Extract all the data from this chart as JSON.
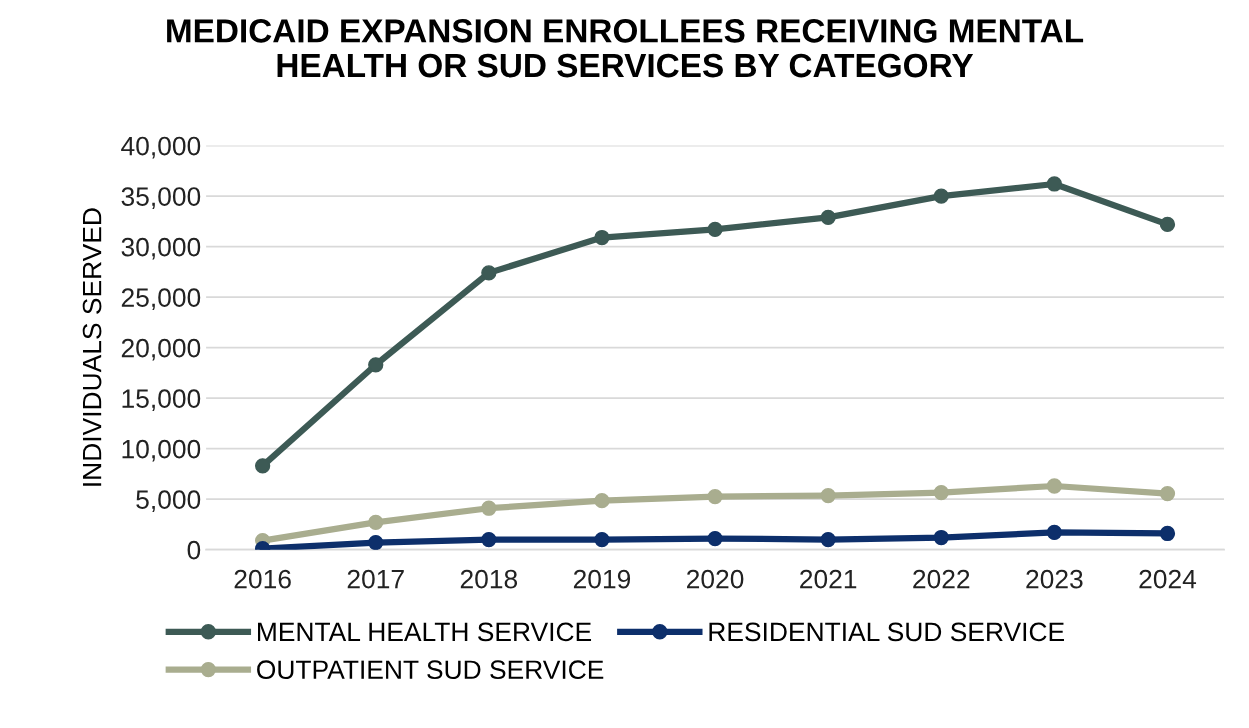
{
  "chart_data": {
    "type": "line",
    "title": "MEDICAID EXPANSION ENROLLEES RECEIVING MENTAL\nHEALTH OR SUD SERVICES BY CATEGORY",
    "ylabel": "INDIVIDUALS SERVED",
    "categories": [
      "2016",
      "2017",
      "2018",
      "2019",
      "2020",
      "2021",
      "2022",
      "2023",
      "2024"
    ],
    "series": [
      {
        "name": "MENTAL HEALTH SERVICE",
        "color": "#3d5a55",
        "values": [
          8300,
          18300,
          27400,
          30900,
          31700,
          32900,
          35000,
          36200,
          32200
        ]
      },
      {
        "name": "OUTPATIENT SUD SERVICE",
        "color": "#a9ad8f",
        "values": [
          900,
          2700,
          4100,
          4850,
          5250,
          5350,
          5650,
          6300,
          5550
        ]
      },
      {
        "name": "RESIDENTIAL SUD SERVICE",
        "color": "#0d2f6b",
        "values": [
          100,
          700,
          1000,
          1000,
          1100,
          1000,
          1200,
          1700,
          1600
        ]
      }
    ],
    "ylim": [
      0,
      40000
    ],
    "yticks": [
      {
        "value": 0,
        "label": "0"
      },
      {
        "value": 5000,
        "label": "5,000"
      },
      {
        "value": 10000,
        "label": "10,000"
      },
      {
        "value": 15000,
        "label": "15,000"
      },
      {
        "value": 20000,
        "label": "20,000"
      },
      {
        "value": 25000,
        "label": "25,000"
      },
      {
        "value": 30000,
        "label": "30,000"
      },
      {
        "value": 35000,
        "label": "35,000"
      },
      {
        "value": 40000,
        "label": "40,000"
      }
    ],
    "grid": "y",
    "legend": "bottom",
    "marker": "circle",
    "line_style": "solid"
  }
}
